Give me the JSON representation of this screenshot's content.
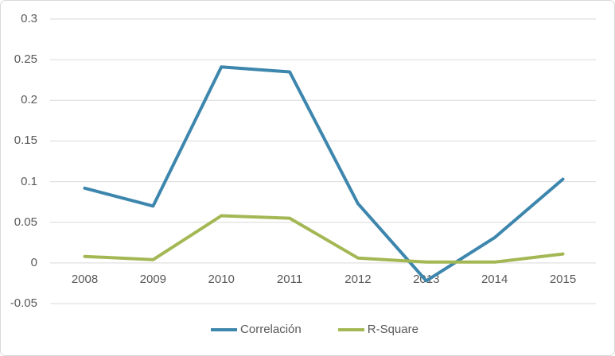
{
  "chart_data": {
    "type": "line",
    "title": "",
    "xlabel": "",
    "ylabel": "",
    "categories": [
      "2008",
      "2009",
      "2010",
      "2011",
      "2012",
      "2013",
      "2014",
      "2015"
    ],
    "series": [
      {
        "name": "Correlación",
        "color": "#3d86ad",
        "values": [
          0.092,
          0.07,
          0.241,
          0.235,
          0.073,
          -0.022,
          0.031,
          0.103
        ]
      },
      {
        "name": "R-Square",
        "color": "#a3b854",
        "values": [
          0.008,
          0.004,
          0.058,
          0.055,
          0.006,
          0.001,
          0.001,
          0.011
        ]
      }
    ],
    "ylim": [
      -0.05,
      0.3
    ],
    "yticks": [
      0.3,
      0.25,
      0.2,
      0.15,
      0.1,
      0.05,
      0,
      -0.05
    ],
    "ytick_labels": [
      "0.3",
      "0.25",
      "0.2",
      "0.15",
      "0.1",
      "0.05",
      "0",
      "-0.05"
    ],
    "grid": true,
    "legend_position": "bottom"
  },
  "colors": {
    "gridline": "#d9d9d9",
    "axis_text": "#595959",
    "frame_border": "#d9d9d9",
    "background": "#ffffff"
  }
}
